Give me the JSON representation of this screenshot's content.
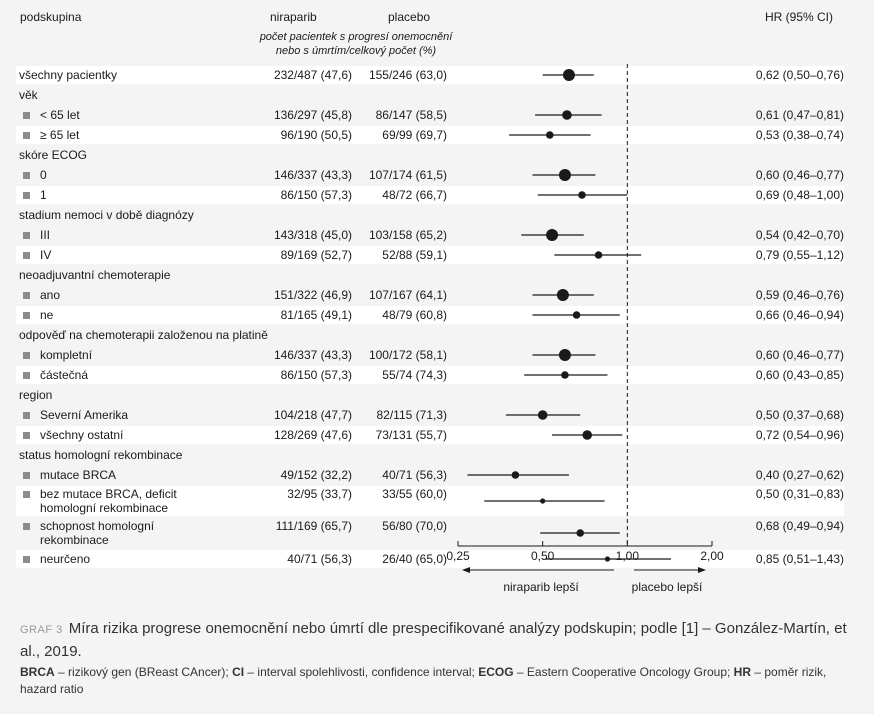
{
  "header": {
    "col_subgroup": "podskupina",
    "col_niraparib": "niraparib",
    "col_placebo": "placebo",
    "col_sub_line1": "počet pacientek s progresí onemocnění",
    "col_sub_line2": "nebo s úmrtím/celkový počet (%)",
    "col_hr": "HR (95% CI)"
  },
  "chart_data": {
    "type": "forest",
    "xlim": [
      0.25,
      2.0
    ],
    "scale": "log",
    "ticks": [
      "0,25",
      "0,50",
      "1,00",
      "2,00"
    ],
    "tick_values": [
      0.25,
      0.5,
      1.0,
      2.0
    ],
    "reference_value": 1.0,
    "left_arrow_label": "niraparib lepší",
    "right_arrow_label": "placebo lepší",
    "rows": [
      {
        "label": "všechny pacientky",
        "niraparib": "232/487 (47,6)",
        "placebo": "155/246 (63,0)",
        "hr": 0.62,
        "lo": 0.5,
        "hi": 0.76,
        "hr_text": "0,62 (0,50–0,76)",
        "marker": "large"
      },
      {
        "label": "věk",
        "header": true
      },
      {
        "label": "< 65 let",
        "niraparib": "136/297 (45,8)",
        "placebo": "86/147 (58,5)",
        "hr": 0.61,
        "lo": 0.47,
        "hi": 0.81,
        "hr_text": "0,61 (0,47–0,81)",
        "marker": "medium"
      },
      {
        "label": "≥ 65 let",
        "niraparib": "96/190 (50,5)",
        "placebo": "69/99 (69,7)",
        "hr": 0.53,
        "lo": 0.38,
        "hi": 0.74,
        "hr_text": "0,53 (0,38–0,74)",
        "marker": "small"
      },
      {
        "label": "skóre ECOG",
        "header": true
      },
      {
        "label": "0",
        "niraparib": "146/337 (43,3)",
        "placebo": "107/174 (61,5)",
        "hr": 0.6,
        "lo": 0.46,
        "hi": 0.77,
        "hr_text": "0,60 (0,46–0,77)",
        "marker": "large"
      },
      {
        "label": "1",
        "niraparib": "86/150 (57,3)",
        "placebo": "48/72 (66,7)",
        "hr": 0.69,
        "lo": 0.48,
        "hi": 1.0,
        "hr_text": "0,69 (0,48–1,00)",
        "marker": "small"
      },
      {
        "label": "stadium nemoci v době diagnózy",
        "header": true
      },
      {
        "label": "III",
        "niraparib": "143/318 (45,0)",
        "placebo": "103/158 (65,2)",
        "hr": 0.54,
        "lo": 0.42,
        "hi": 0.7,
        "hr_text": "0,54 (0,42–0,70)",
        "marker": "large"
      },
      {
        "label": "IV",
        "niraparib": "89/169 (52,7)",
        "placebo": "52/88 (59,1)",
        "hr": 0.79,
        "lo": 0.55,
        "hi": 1.12,
        "hr_text": "0,79 (0,55–1,12)",
        "marker": "small"
      },
      {
        "label": "neoadjuvantní chemoterapie",
        "header": true
      },
      {
        "label": "ano",
        "niraparib": "151/322 (46,9)",
        "placebo": "107/167 (64,1)",
        "hr": 0.59,
        "lo": 0.46,
        "hi": 0.76,
        "hr_text": "0,59 (0,46–0,76)",
        "marker": "large"
      },
      {
        "label": "ne",
        "niraparib": "81/165 (49,1)",
        "placebo": "48/79 (60,8)",
        "hr": 0.66,
        "lo": 0.46,
        "hi": 0.94,
        "hr_text": "0,66 (0,46–0,94)",
        "marker": "small"
      },
      {
        "label": "odpověď na chemoterapii založenou na platině",
        "header": true
      },
      {
        "label": "kompletní",
        "niraparib": "146/337 (43,3)",
        "placebo": "100/172 (58,1)",
        "hr": 0.6,
        "lo": 0.46,
        "hi": 0.77,
        "hr_text": "0,60 (0,46–0,77)",
        "marker": "large"
      },
      {
        "label": "částečná",
        "niraparib": "86/150 (57,3)",
        "placebo": "55/74 (74,3)",
        "hr": 0.6,
        "lo": 0.43,
        "hi": 0.85,
        "hr_text": "0,60 (0,43–0,85)",
        "marker": "small"
      },
      {
        "label": "region",
        "header": true
      },
      {
        "label": "Severní Amerika",
        "niraparib": "104/218 (47,7)",
        "placebo": "82/115 (71,3)",
        "hr": 0.5,
        "lo": 0.37,
        "hi": 0.68,
        "hr_text": "0,50 (0,37–0,68)",
        "marker": "medium"
      },
      {
        "label": "všechny ostatní",
        "niraparib": "128/269 (47,6)",
        "placebo": "73/131 (55,7)",
        "hr": 0.72,
        "lo": 0.54,
        "hi": 0.96,
        "hr_text": "0,72 (0,54–0,96)",
        "marker": "medium"
      },
      {
        "label": "status homologní rekombinace",
        "header": true
      },
      {
        "label": "mutace BRCA",
        "niraparib": "49/152 (32,2)",
        "placebo": "40/71 (56,3)",
        "hr": 0.4,
        "lo": 0.27,
        "hi": 0.62,
        "hr_text": "0,40 (0,27–0,62)",
        "marker": "small"
      },
      {
        "label": "bez mutace BRCA, deficit homologní rekombinace",
        "label_lines": [
          "bez mutace BRCA, deficit",
          "homologní rekombinace"
        ],
        "niraparib": "32/95 (33,7)",
        "placebo": "33/55 (60,0)",
        "hr": 0.5,
        "lo": 0.31,
        "hi": 0.83,
        "hr_text": "0,50 (0,31–0,83)",
        "marker": "tiny"
      },
      {
        "label": "schopnost homologní rekombinace",
        "label_lines": [
          "schopnost homologní",
          "rekombinace"
        ],
        "niraparib": "111/169 (65,7)",
        "placebo": "56/80 (70,0)",
        "hr": 0.68,
        "lo": 0.49,
        "hi": 0.94,
        "hr_text": "0,68 (0,49–0,94)",
        "marker": "small"
      },
      {
        "label": "neurčeno",
        "niraparib": "40/71 (56,3)",
        "placebo": "26/40 (65,0)",
        "hr": 0.85,
        "lo": 0.51,
        "hi": 1.43,
        "hr_text": "0,85 (0,51–1,43)",
        "marker": "tiny"
      }
    ]
  },
  "caption": {
    "tag": "GRAF 3",
    "text": "Míra rizika progrese onemocnění nebo úmrtí dle prespecifikované analýzy podskupin; podle [1] – González-Martín, et al., 2019."
  },
  "footnote": [
    {
      "abbr": "BRCA",
      "text": " – rizikový gen (BReast CAncer); "
    },
    {
      "abbr": "CI",
      "text": " – interval spolehlivosti, confidence interval; "
    },
    {
      "abbr": "ECOG",
      "text": " – Eastern Cooperative Oncology Group; "
    },
    {
      "abbr": "HR",
      "text": " – poměr rizik, hazard ratio"
    }
  ],
  "colors": {
    "band": "#ffffff",
    "background": "#f4f4f4",
    "marker": "#1a1a1a",
    "bullet": "#8c8c8c"
  }
}
